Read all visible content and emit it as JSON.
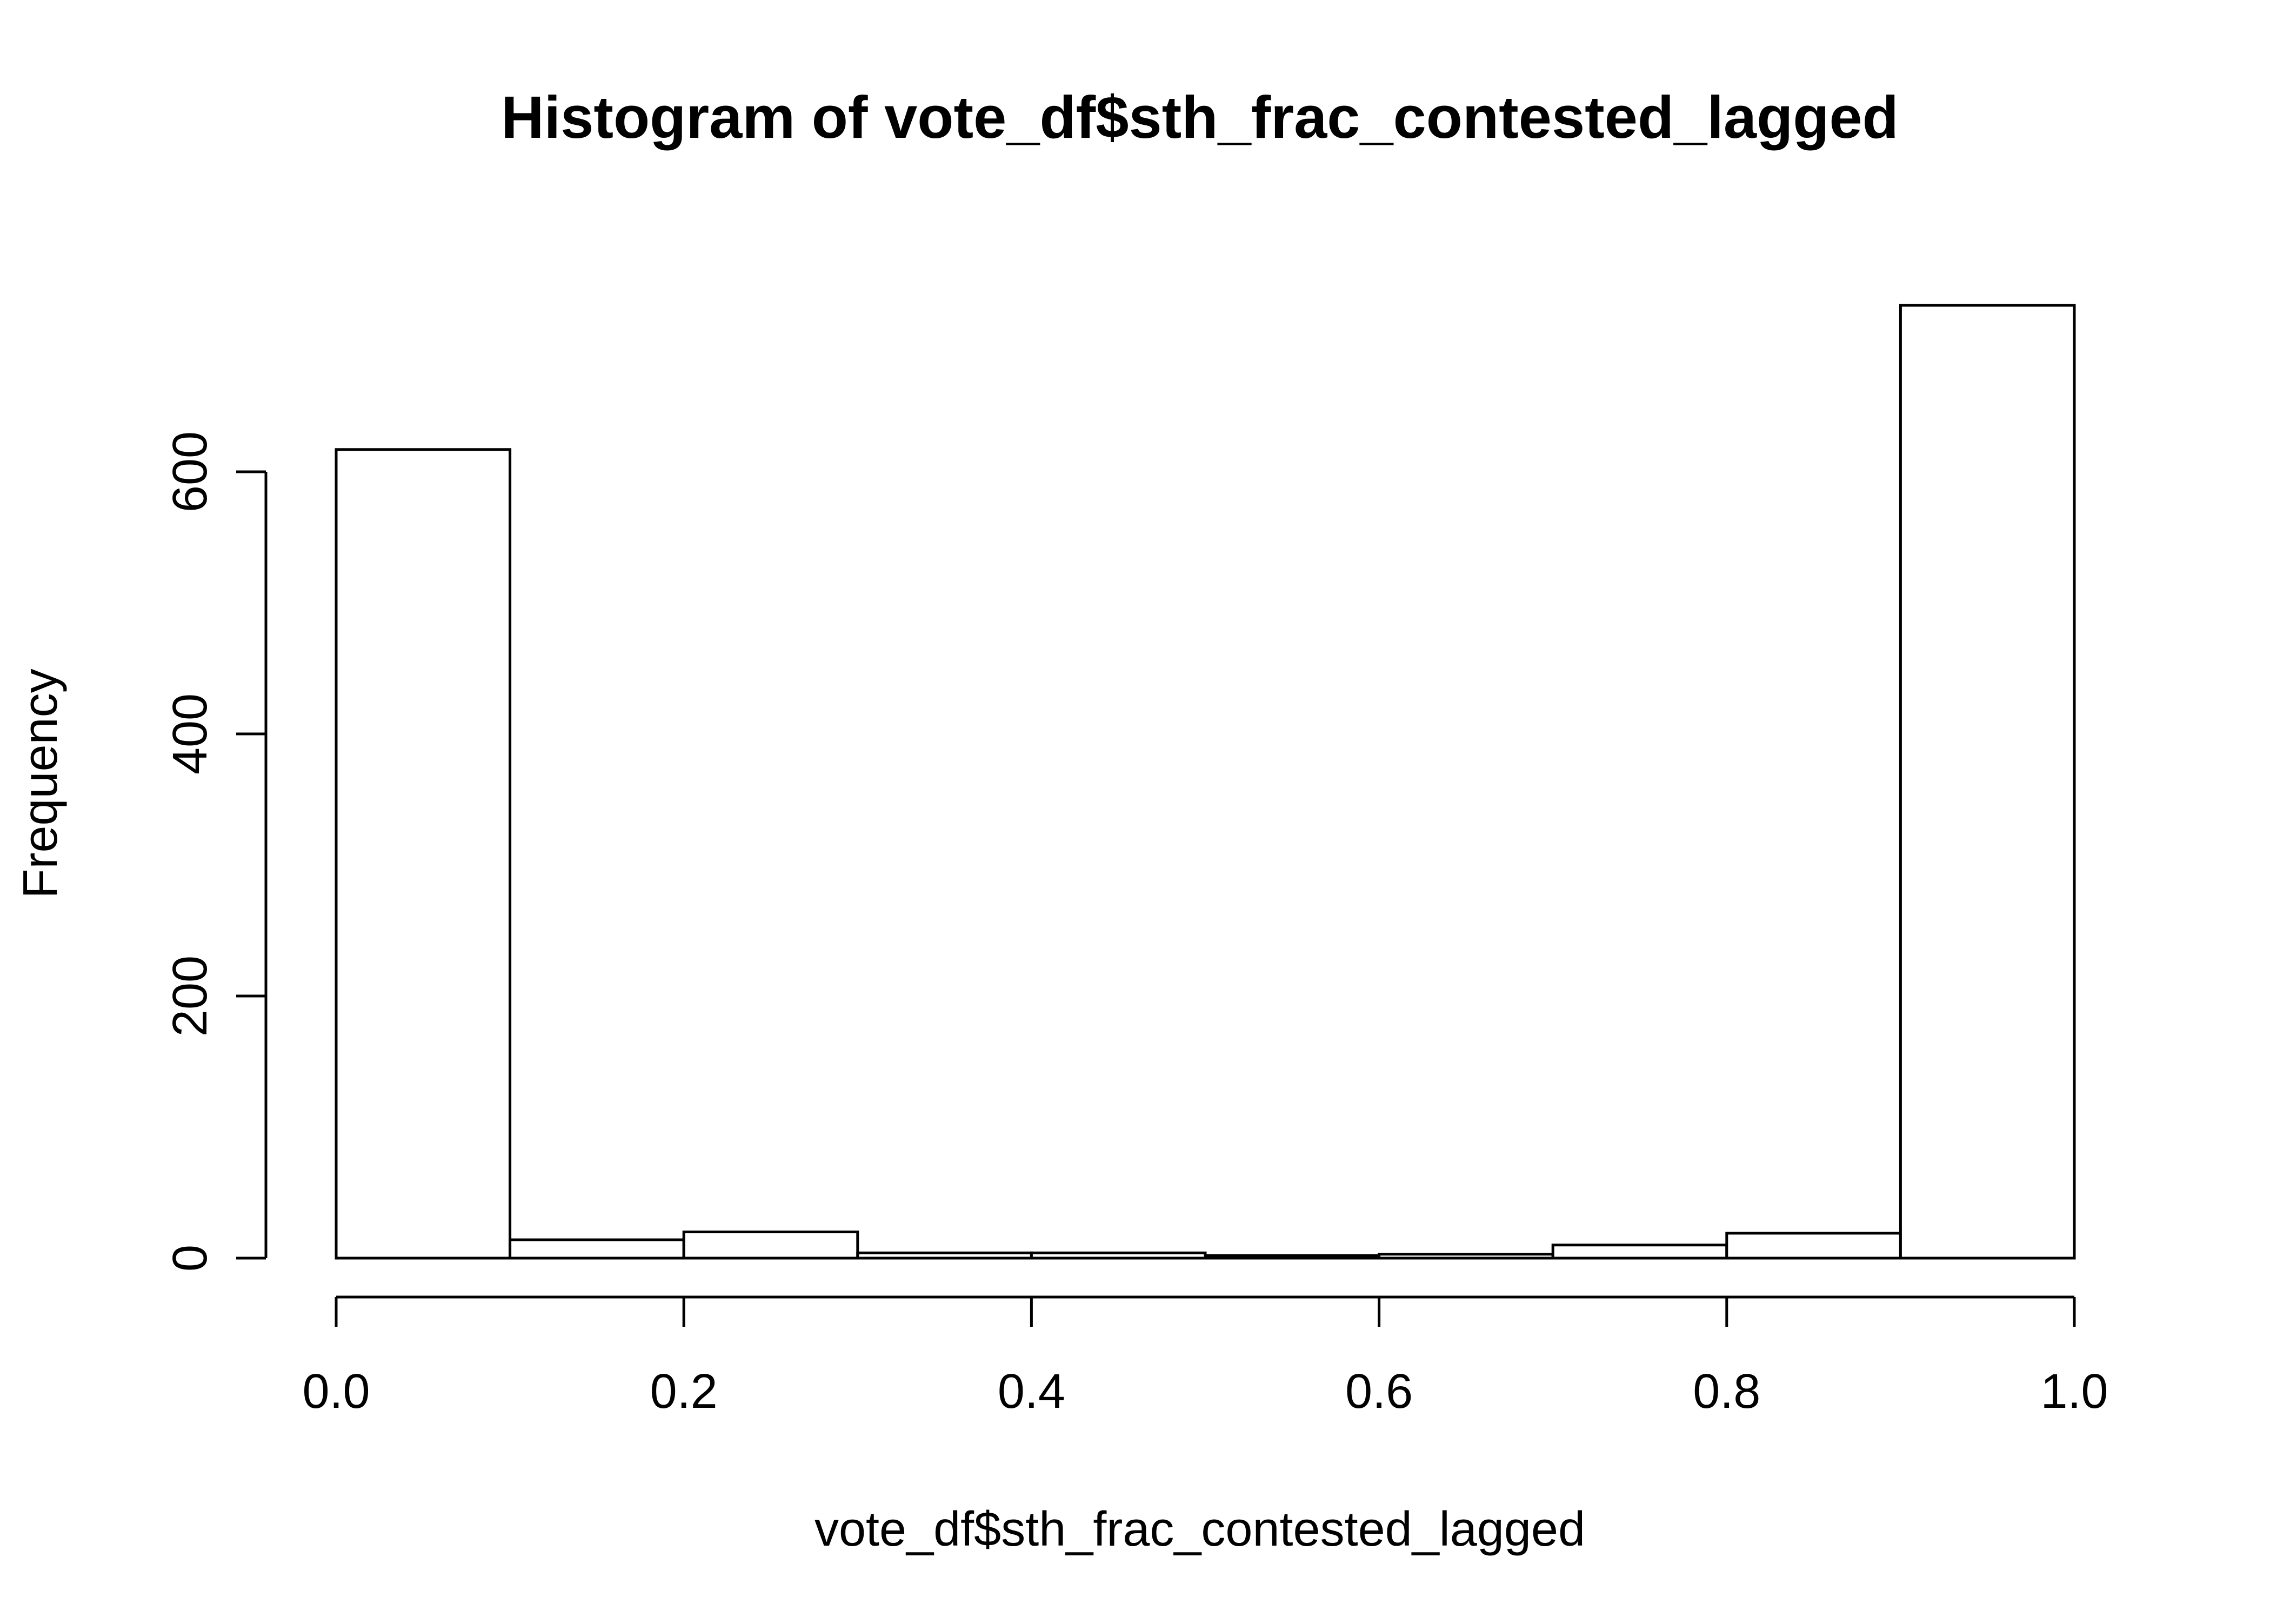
{
  "chart_data": {
    "type": "bar",
    "title": "Histogram of vote_df$sth_frac_contested_lagged",
    "xlabel": "vote_df$sth_frac_contested_lagged",
    "ylabel": "Frequency",
    "bins": [
      {
        "start": 0.0,
        "end": 0.1,
        "count": 617
      },
      {
        "start": 0.1,
        "end": 0.2,
        "count": 14
      },
      {
        "start": 0.2,
        "end": 0.3,
        "count": 20
      },
      {
        "start": 0.3,
        "end": 0.4,
        "count": 4
      },
      {
        "start": 0.4,
        "end": 0.5,
        "count": 4
      },
      {
        "start": 0.5,
        "end": 0.6,
        "count": 2
      },
      {
        "start": 0.6,
        "end": 0.7,
        "count": 3
      },
      {
        "start": 0.7,
        "end": 0.8,
        "count": 10
      },
      {
        "start": 0.8,
        "end": 0.9,
        "count": 19
      },
      {
        "start": 0.9,
        "end": 1.0,
        "count": 727
      }
    ],
    "xlim": [
      0.0,
      1.0
    ],
    "ylim": [
      0,
      727
    ],
    "x_ticks": [
      {
        "value": 0.0,
        "label": "0.0"
      },
      {
        "value": 0.2,
        "label": "0.2"
      },
      {
        "value": 0.4,
        "label": "0.4"
      },
      {
        "value": 0.6,
        "label": "0.6"
      },
      {
        "value": 0.8,
        "label": "0.8"
      },
      {
        "value": 1.0,
        "label": "1.0"
      }
    ],
    "y_ticks": [
      {
        "value": 0,
        "label": "0"
      },
      {
        "value": 200,
        "label": "200"
      },
      {
        "value": 400,
        "label": "400"
      },
      {
        "value": 600,
        "label": "600"
      }
    ],
    "bar_fill": "#ffffff",
    "bar_stroke": "#000000",
    "grid": false,
    "legend": "none"
  }
}
